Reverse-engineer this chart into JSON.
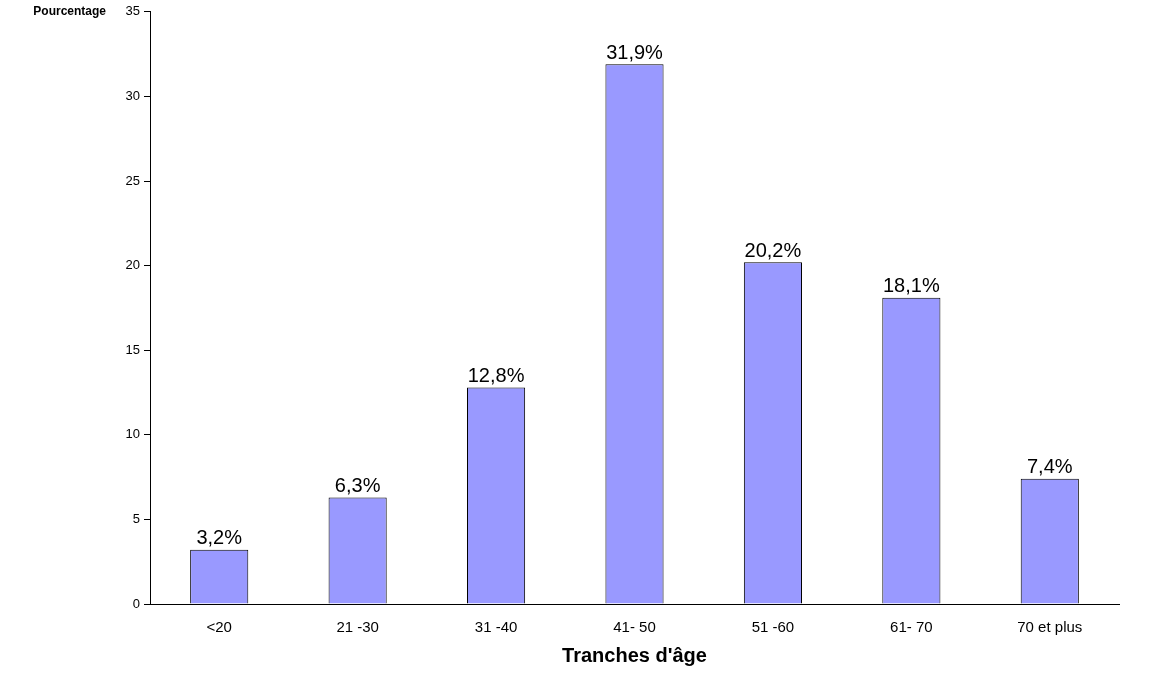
{
  "chart_data": {
    "type": "bar",
    "xlabel": "Tranches d'âge",
    "ylabel": "Pourcentage",
    "categories": [
      "<20",
      "21 -30",
      "31 -40",
      "41- 50",
      "51 -60",
      "61- 70",
      "70 et plus"
    ],
    "values": [
      3.2,
      6.3,
      12.8,
      31.9,
      20.2,
      18.1,
      7.4
    ],
    "value_labels": [
      "3,2%",
      "6,3%",
      "12,8%",
      "31,9%",
      "20,2%",
      "18,1%",
      "7,4%"
    ],
    "color": "#9999ff",
    "ylim": [
      0,
      35
    ],
    "yticks": [
      0,
      5,
      10,
      15,
      20,
      25,
      30,
      35
    ],
    "grid": false,
    "legend": false
  }
}
